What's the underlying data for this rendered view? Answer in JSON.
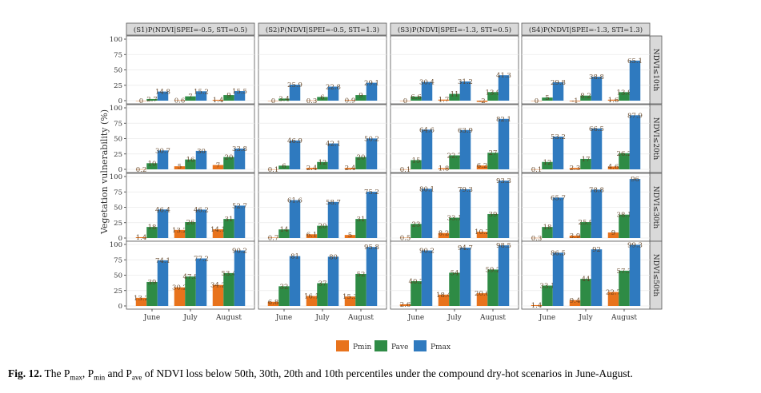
{
  "chart_data": {
    "type": "bar",
    "ylabel": "Vegetation vulnerability (%)",
    "ylim": [
      0,
      100
    ],
    "yticks": [
      0,
      25,
      50,
      75,
      100
    ],
    "categories": [
      "June",
      "July",
      "August"
    ],
    "series_names": [
      "Pmin",
      "Pave",
      "Pmax"
    ],
    "colors": {
      "Pmin": "#e8731c",
      "Pave": "#2e8b45",
      "Pmax": "#2f7abf"
    },
    "columns": [
      "(S1)P(NDVI|SPEI=-0.5, STI=0.5)",
      "(S2)P(NDVI|SPEI=-0.5, STI=1.3)",
      "(S3)P(NDVI|SPEI=-1.3, STI=0.5)",
      "(S4)P(NDVI|SPEI=-1.3, STI=1.3)"
    ],
    "rows": [
      "NDVI≤10th",
      "NDVI≤20th",
      "NDVI≤30th",
      "NDVI≤50th"
    ],
    "panels": [
      [
        {
          "Pmin": [
            0,
            0.6,
            1.4
          ],
          "Pave": [
            2.7,
            7,
            9
          ],
          "Pmax": [
            14.8,
            15.2,
            15.5
          ]
        },
        {
          "Pmin": [
            0,
            0.3,
            0.9
          ],
          "Pave": [
            3.4,
            6,
            9
          ],
          "Pmax": [
            25.9,
            22.8,
            29.1
          ]
        },
        {
          "Pmin": [
            0,
            1.7,
            -2
          ],
          "Pave": [
            6.6,
            11,
            13.9
          ],
          "Pmax": [
            30.4,
            31.2,
            41.3
          ]
        },
        {
          "Pmin": [
            0,
            -1,
            1.6
          ],
          "Pave": [
            5,
            8.2,
            13.8
          ],
          "Pmax": [
            29.8,
            38.8,
            65.1
          ]
        }
      ],
      [
        {
          "Pmin": [
            0.2,
            5,
            7
          ],
          "Pave": [
            10,
            16,
            20
          ],
          "Pmax": [
            30.7,
            30,
            33.8
          ]
        },
        {
          "Pmin": [
            0.1,
            2.4,
            2.4
          ],
          "Pave": [
            6,
            12,
            20
          ],
          "Pmax": [
            46.9,
            42.1,
            50.2
          ]
        },
        {
          "Pmin": [
            0.1,
            1.8,
            6.2
          ],
          "Pave": [
            15,
            22.7,
            27
          ],
          "Pmax": [
            64.6,
            63.9,
            82.1
          ]
        },
        {
          "Pmin": [
            0.1,
            2.3,
            4.6
          ],
          "Pave": [
            12,
            17,
            26.2
          ],
          "Pmax": [
            53.2,
            66.5,
            87.9
          ]
        }
      ],
      [
        {
          "Pmin": [
            1.4,
            13.2,
            14.1
          ],
          "Pave": [
            18,
            26,
            31
          ],
          "Pmax": [
            46.4,
            46.2,
            52.7
          ]
        },
        {
          "Pmin": [
            0.7,
            6.1,
            5
          ],
          "Pave": [
            14,
            20,
            31
          ],
          "Pmax": [
            61.6,
            58.7,
            75.2
          ]
        },
        {
          "Pmin": [
            0.5,
            8.2,
            10.2
          ],
          "Pave": [
            23,
            33.1,
            39
          ],
          "Pmax": [
            80.1,
            79.3,
            93.3
          ]
        },
        {
          "Pmin": [
            0.3,
            3.9,
            9
          ],
          "Pave": [
            18,
            25.9,
            38.1
          ],
          "Pmax": [
            65.7,
            78.8,
            96
          ]
        }
      ],
      [
        {
          "Pmin": [
            13.2,
            30.2,
            34.2
          ],
          "Pave": [
            39,
            47.8,
            53.4
          ],
          "Pmax": [
            74.1,
            77.2,
            90.2
          ]
        },
        {
          "Pmin": [
            6.8,
            16.1,
            15.3
          ],
          "Pave": [
            32,
            37,
            52
          ],
          "Pmax": [
            81,
            80,
            95.8
          ]
        },
        {
          "Pmin": [
            2.6,
            18.4,
            20.6
          ],
          "Pave": [
            40.2,
            54,
            59.2
          ],
          "Pmax": [
            90.2,
            94.7,
            98.5
          ]
        },
        {
          "Pmin": [
            1.4,
            9.4,
            22.7
          ],
          "Pave": [
            33.1,
            44,
            57.3
          ],
          "Pmax": [
            86.5,
            92,
            99.3
          ]
        }
      ]
    ],
    "labels": [
      [
        {
          "Pmin": [
            "0",
            "0.6",
            "1.4"
          ],
          "Pave": [
            "2.7",
            "7",
            "9"
          ],
          "Pmax": [
            "14.8",
            "15.2",
            "15.5"
          ]
        },
        {
          "Pmin": [
            "0",
            "0.3",
            "0.9"
          ],
          "Pave": [
            "3.4",
            "6",
            "9"
          ],
          "Pmax": [
            "25.9",
            "22.8",
            "29.1"
          ]
        },
        {
          "Pmin": [
            "0",
            "1.7",
            "-2"
          ],
          "Pave": [
            "6.6",
            "11",
            "13.9"
          ],
          "Pmax": [
            "30.4",
            "31.2",
            "41.3"
          ]
        },
        {
          "Pmin": [
            "0",
            "-1",
            "1.6"
          ],
          "Pave": [
            "5",
            "8.2",
            "13.8"
          ],
          "Pmax": [
            "29.8",
            "38.8",
            "65.1"
          ]
        }
      ],
      [
        {
          "Pmin": [
            "0.2",
            "5",
            "7"
          ],
          "Pave": [
            "10",
            "16",
            "20"
          ],
          "Pmax": [
            "30.7",
            "30",
            "33.8"
          ]
        },
        {
          "Pmin": [
            "0.1",
            "2.4",
            "2.4"
          ],
          "Pave": [
            "6",
            "12",
            "20"
          ],
          "Pmax": [
            "46.9",
            "42.1",
            "50.2"
          ]
        },
        {
          "Pmin": [
            "0.1",
            "1.8",
            "6.2"
          ],
          "Pave": [
            "15",
            "22.7",
            "27"
          ],
          "Pmax": [
            "64.6",
            "63.9",
            "82.1"
          ]
        },
        {
          "Pmin": [
            "0.1",
            "2.3",
            "4.6"
          ],
          "Pave": [
            "12",
            "17",
            "26.2"
          ],
          "Pmax": [
            "53.2",
            "66.5",
            "87.9"
          ]
        }
      ],
      [
        {
          "Pmin": [
            "1.4",
            "13.2",
            "14.1"
          ],
          "Pave": [
            "18",
            "26",
            "31"
          ],
          "Pmax": [
            "46.4",
            "46.2",
            "52.7"
          ]
        },
        {
          "Pmin": [
            "0.7",
            "6.1",
            "5"
          ],
          "Pave": [
            "14",
            "20",
            "31"
          ],
          "Pmax": [
            "61.6",
            "58.7",
            "75.2"
          ]
        },
        {
          "Pmin": [
            "0.5",
            "8.2",
            "10.2"
          ],
          "Pave": [
            "23",
            "33.1",
            "39"
          ],
          "Pmax": [
            "80.1",
            "79.3",
            "93.3"
          ]
        },
        {
          "Pmin": [
            "0.3",
            "3.9",
            "9"
          ],
          "Pave": [
            "18",
            "25.9",
            "38.1"
          ],
          "Pmax": [
            "65.7",
            "78.8",
            "96"
          ]
        }
      ],
      [
        {
          "Pmin": [
            "13.2",
            "30.2",
            "34.2"
          ],
          "Pave": [
            "39",
            "47.8",
            "53.4"
          ],
          "Pmax": [
            "74.1",
            "77.2",
            "90.2"
          ]
        },
        {
          "Pmin": [
            "6.8",
            "16.1",
            "15.3"
          ],
          "Pave": [
            "32",
            "37",
            "52"
          ],
          "Pmax": [
            "81",
            "80",
            "95.8"
          ]
        },
        {
          "Pmin": [
            "2.6",
            "18.4",
            "20.6"
          ],
          "Pave": [
            "40.2",
            "54",
            "59.2"
          ],
          "Pmax": [
            "90.2",
            "94.7",
            "98.5"
          ]
        },
        {
          "Pmin": [
            "1.4",
            "9.4",
            "22.7"
          ],
          "Pave": [
            "33.1",
            "44",
            "57.3"
          ],
          "Pmax": [
            "86.5",
            "92",
            "99.3"
          ]
        }
      ]
    ],
    "legend": [
      "Pmin",
      "Pave",
      "Pmax"
    ],
    "legend_position": "bottom-center"
  },
  "caption": {
    "label": "Fig. 12.",
    "text_start": "The P",
    "sub_max": "max",
    "sep1": ", P",
    "sub_min": "min",
    "sep2": " and P",
    "sub_ave": "ave",
    "text_end": " of NDVI loss below 50th, 30th, 20th and 10th percentiles under the compound dry-hot scenarios in June-August."
  }
}
